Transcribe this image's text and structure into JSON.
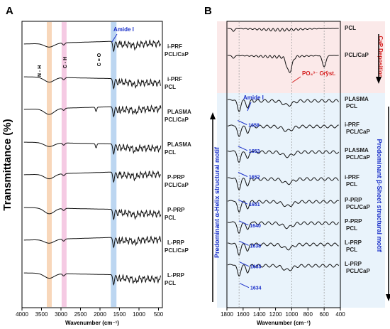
{
  "chart_data": [
    {
      "type": "line",
      "panel_label": "A",
      "ylabel": "Transmittance (%)",
      "xlabel": "Wavenumber (cm⁻¹)",
      "xlim": [
        4000,
        400
      ],
      "x_ticks": [
        4000,
        3500,
        3000,
        2500,
        2000,
        1500,
        1000,
        500
      ],
      "x_tick_labels": [
        "4000",
        "3500",
        "3000",
        "2500",
        "2000",
        "1500",
        "1000",
        "500"
      ],
      "bands": [
        {
          "label": "N - H",
          "center": 3300,
          "color": "#f6c9a3"
        },
        {
          "label": "C - H",
          "center": 2920,
          "color": "#f2b8da"
        },
        {
          "label": "C = O",
          "center": 1650,
          "color": "#a6c8ec"
        }
      ],
      "annotation": "Amide I",
      "series": [
        {
          "name": "i-PRF PCL/CaP",
          "label1": "i-PRF",
          "label2": "PCL/CaP"
        },
        {
          "name": "i-PRF PCL",
          "label1": "i-PRF",
          "label2": "PCL"
        },
        {
          "name": "PLASMA PCL/CaP",
          "label1": "PLASMA",
          "label2": "PCL/CaP"
        },
        {
          "name": "PLASMA PCL",
          "label1": "PLASMA",
          "label2": "PCL"
        },
        {
          "name": "P-PRP PCL/CaP",
          "label1": "P-PRP",
          "label2": "PCL/CaP"
        },
        {
          "name": "P-PRP PCL",
          "label1": "P-PRP",
          "label2": "PCL"
        },
        {
          "name": "L-PRP PCL/CaP",
          "label1": "L-PRP",
          "label2": "PCL/CaP"
        },
        {
          "name": "L-PRP PCL",
          "label1": "L-PRP",
          "label2": "PCL"
        }
      ]
    },
    {
      "type": "line",
      "panel_label": "B",
      "xlabel": "Wavenumber (cm⁻¹)",
      "xlim": [
        1800,
        400
      ],
      "x_ticks": [
        1800,
        1600,
        1400,
        1200,
        1000,
        800,
        600,
        400
      ],
      "x_tick_labels": [
        "1800",
        "1600",
        "1400",
        "1200",
        "1000",
        "800",
        "600",
        "400"
      ],
      "top_region": "CaP Deposition",
      "left_region": "Predominant  α-Helix  structural motif",
      "right_region": "Predominant  β-Sheet  structural motif",
      "annotation": "Amide I",
      "po4_label": "PO₄³⁻ Cryst.",
      "series": [
        {
          "name": "PCL",
          "label1": "PCL",
          "label2": "",
          "amide_peak": null
        },
        {
          "name": "PCL/CaP",
          "label1": "PCL/CaP",
          "label2": "",
          "amide_peak": null
        },
        {
          "name": "PLASMA PCL",
          "label1": "PLASMA",
          "label2": "PCL",
          "amide_peak": 1658
        },
        {
          "name": "i-PRF PCL/CaP",
          "label1": "i-PRF",
          "label2": "PCL/CaP",
          "amide_peak": 1653
        },
        {
          "name": "PLASMA PCL/CaP",
          "label1": "PLASMA",
          "label2": "PCL/CaP",
          "amide_peak": 1652
        },
        {
          "name": "i-PRF PCL",
          "label1": "i-PRF",
          "label2": "PCL",
          "amide_peak": 1651
        },
        {
          "name": "P-PRP PCL/CaP",
          "label1": "P-PRP",
          "label2": "PCL/CaP",
          "amide_peak": 1640
        },
        {
          "name": "P-PRP PCL",
          "label1": "P-PRP",
          "label2": "PCL",
          "amide_peak": 1638
        },
        {
          "name": "L-PRP PCL",
          "label1": "L-PRP",
          "label2": "PCL",
          "amide_peak": 1635
        },
        {
          "name": "L-PRP PCL/CaP",
          "label1": "L-PRP",
          "label2": "PCL/CaP",
          "amide_peak": 1634
        }
      ]
    }
  ]
}
